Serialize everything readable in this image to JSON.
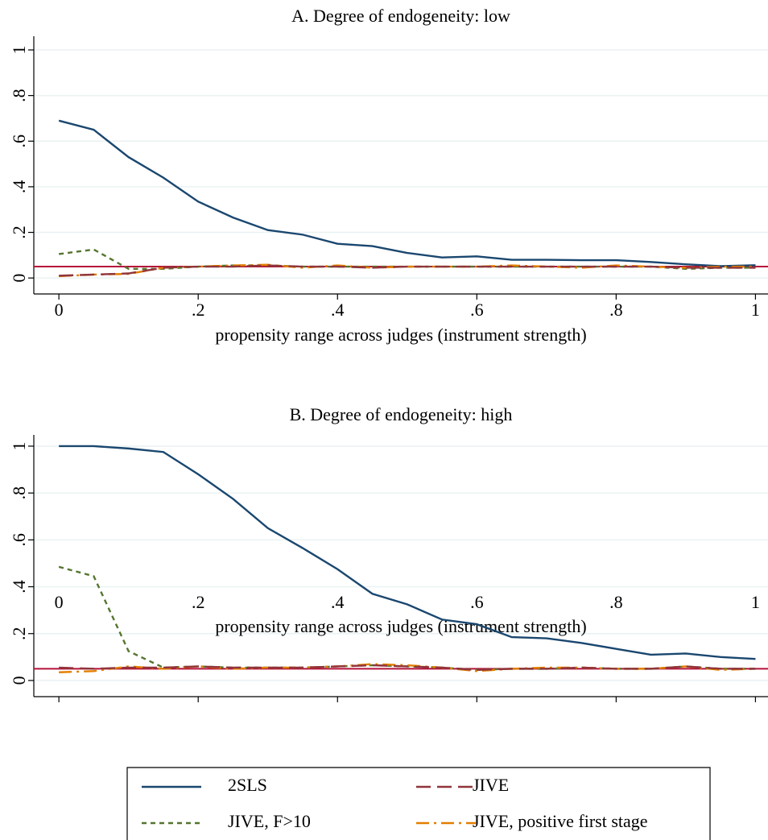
{
  "chart_data": [
    {
      "type": "line",
      "title": "A. Degree of endogeneity: low",
      "x_label": "propensity range across judges (instrument strength)",
      "x": [
        0,
        0.05,
        0.1,
        0.15,
        0.2,
        0.25,
        0.3,
        0.35,
        0.4,
        0.45,
        0.5,
        0.55,
        0.6,
        0.65,
        0.7,
        0.75,
        0.8,
        0.85,
        0.9,
        0.95,
        1
      ],
      "series": [
        {
          "color": "#1a476f",
          "dash": "solid",
          "values": [
            0.69,
            0.65,
            0.53,
            0.44,
            0.335,
            0.265,
            0.21,
            0.19,
            0.15,
            0.14,
            0.11,
            0.09,
            0.095,
            0.08,
            0.08,
            0.078,
            0.078,
            0.07,
            0.06,
            0.052,
            0.056
          ]
        },
        {
          "color": "#55752f",
          "dash": "shortdash",
          "values": [
            0.105,
            0.125,
            0.04,
            0.04,
            0.05,
            0.055,
            0.055,
            0.05,
            0.05,
            0.05,
            0.05,
            0.05,
            0.05,
            0.05,
            0.05,
            0.05,
            0.05,
            0.05,
            0.04,
            0.045,
            0.045
          ]
        },
        {
          "color": "#90353b",
          "dash": "longdash",
          "values": [
            0.01,
            0.015,
            0.02,
            0.045,
            0.05,
            0.05,
            0.055,
            0.05,
            0.05,
            0.045,
            0.05,
            0.05,
            0.05,
            0.05,
            0.05,
            0.05,
            0.05,
            0.05,
            0.045,
            0.045,
            0.045
          ]
        },
        {
          "color": "#e37e00",
          "dash": "dashdot",
          "values": [
            0.008,
            0.015,
            0.018,
            0.045,
            0.05,
            0.055,
            0.058,
            0.045,
            0.055,
            0.045,
            0.05,
            0.05,
            0.05,
            0.055,
            0.05,
            0.045,
            0.055,
            0.05,
            0.045,
            0.05,
            0.05
          ]
        }
      ],
      "hline": 0.05,
      "hline_color": "#b5123a",
      "xlim": [
        -0.036,
        1.018
      ],
      "xticks": [
        0,
        {
          "value": 0.2,
          "label": ".2"
        },
        {
          "value": 0.4,
          "label": ".4"
        },
        {
          "value": 0.6,
          "label": ".6"
        },
        {
          "value": 0.8,
          "label": ".8"
        },
        1
      ],
      "ylim": [
        -0.07,
        1.06
      ],
      "yticks": [
        0,
        {
          "value": 0.2,
          "label": ".2"
        },
        {
          "value": 0.4,
          "label": ".4"
        },
        {
          "value": 0.6,
          "label": ".6"
        },
        {
          "value": 0.8,
          "label": ".8"
        },
        1
      ],
      "grid": true
    },
    {
      "type": "line",
      "title": "B. Degree of endogeneity: high",
      "x_label": "propensity range across judges (instrument strength)",
      "x": [
        0,
        0.05,
        0.1,
        0.15,
        0.2,
        0.25,
        0.3,
        0.35,
        0.4,
        0.45,
        0.5,
        0.55,
        0.6,
        0.65,
        0.7,
        0.75,
        0.8,
        0.85,
        0.9,
        0.95,
        1
      ],
      "series": [
        {
          "name": "2SLS",
          "color": "#1a476f",
          "dash": "solid",
          "values": [
            1,
            1,
            0.99,
            0.975,
            0.88,
            0.775,
            0.65,
            0.565,
            0.475,
            0.37,
            0.325,
            0.26,
            0.24,
            0.185,
            0.18,
            0.16,
            0.135,
            0.11,
            0.115,
            0.1,
            0.092
          ]
        },
        {
          "name": "JIVE, F>10",
          "color": "#55752f",
          "dash": "shortdash",
          "values": [
            0.485,
            0.445,
            0.125,
            0.055,
            0.06,
            0.055,
            0.055,
            0.055,
            0.06,
            0.065,
            0.06,
            0.055,
            0.045,
            0.05,
            0.05,
            0.055,
            0.05,
            0.05,
            0.06,
            0.05,
            0.05
          ]
        },
        {
          "name": "JIVE",
          "color": "#90353b",
          "dash": "longdash",
          "values": [
            0.055,
            0.05,
            0.055,
            0.055,
            0.06,
            0.055,
            0.055,
            0.055,
            0.06,
            0.065,
            0.06,
            0.055,
            0.045,
            0.05,
            0.05,
            0.055,
            0.05,
            0.05,
            0.06,
            0.05,
            0.05
          ]
        },
        {
          "name": "JIVE, positive first stage",
          "color": "#e37e00",
          "dash": "dashdot",
          "values": [
            0.035,
            0.04,
            0.06,
            0.05,
            0.06,
            0.05,
            0.055,
            0.055,
            0.06,
            0.07,
            0.065,
            0.055,
            0.04,
            0.05,
            0.055,
            0.055,
            0.05,
            0.05,
            0.06,
            0.045,
            0.05
          ]
        }
      ],
      "hline": 0.05,
      "hline_color": "#b5123a",
      "xlim": [
        -0.036,
        1.018
      ],
      "xticks": [
        0,
        {
          "value": 0.2,
          "label": ".2"
        },
        {
          "value": 0.4,
          "label": ".4"
        },
        {
          "value": 0.6,
          "label": ".6"
        },
        {
          "value": 0.8,
          "label": ".8"
        },
        1
      ],
      "ylim": [
        -0.069,
        1.048
      ],
      "yticks": [
        0,
        {
          "value": 0.2,
          "label": ".2"
        },
        {
          "value": 0.4,
          "label": ".4"
        },
        {
          "value": 0.6,
          "label": ".6"
        },
        {
          "value": 0.8,
          "label": ".8"
        },
        1
      ],
      "grid": true
    }
  ]
}
